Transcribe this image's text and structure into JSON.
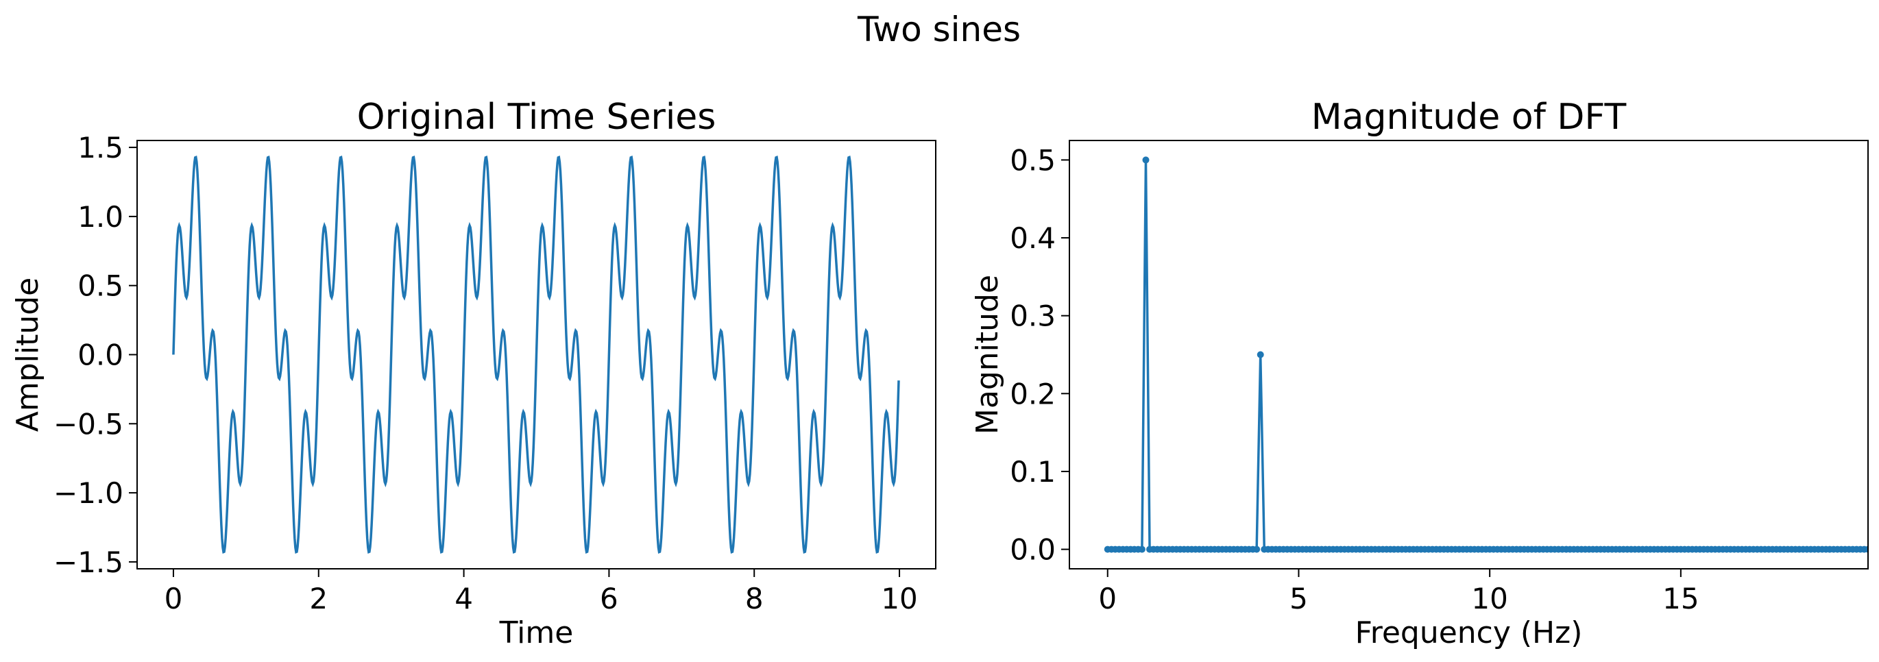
{
  "figure_title": "Two sines",
  "colors": {
    "line": "#1f77b4",
    "axes": "#000000",
    "background": "#ffffff"
  },
  "chart_data": [
    {
      "type": "line",
      "title": "Original Time Series",
      "xlabel": "Time",
      "ylabel": "Amplitude",
      "xlim": [
        -0.5,
        10.5
      ],
      "ylim": [
        -1.55,
        1.55
      ],
      "xticks": [
        0,
        2,
        4,
        6,
        8,
        10
      ],
      "xtick_labels": [
        "0",
        "2",
        "4",
        "6",
        "8",
        "10"
      ],
      "yticks": [
        -1.5,
        -1.0,
        -0.5,
        0.0,
        0.5,
        1.0,
        1.5
      ],
      "ytick_labels": [
        "−1.5",
        "−1.0",
        "−0.5",
        "0.0",
        "0.5",
        "1.0",
        "1.5"
      ],
      "grid": false,
      "x_range": [
        0,
        10
      ],
      "series": [
        {
          "components": [
            {
              "amplitude": 1.0,
              "frequency_hz": 1
            },
            {
              "amplitude": 0.5,
              "frequency_hz": 4
            }
          ],
          "samples": 1000
        }
      ]
    },
    {
      "type": "stem",
      "title": "Magnitude of DFT",
      "xlabel": "Frequency (Hz)",
      "ylabel": "Magnitude",
      "xlim": [
        -1.0,
        19.9
      ],
      "ylim": [
        -0.025,
        0.525
      ],
      "xticks": [
        0,
        5,
        10,
        15
      ],
      "xtick_labels": [
        "0",
        "5",
        "10",
        "15"
      ],
      "yticks": [
        0.0,
        0.1,
        0.2,
        0.3,
        0.4,
        0.5
      ],
      "ytick_labels": [
        "0.0",
        "0.1",
        "0.2",
        "0.3",
        "0.4",
        "0.5"
      ],
      "grid": false,
      "frequency_step": 0.1,
      "frequency_max": 19.9,
      "peaks": [
        {
          "x": 1.0,
          "y": 0.5
        },
        {
          "x": 4.0,
          "y": 0.25
        }
      ],
      "baseline": 0.0
    }
  ]
}
